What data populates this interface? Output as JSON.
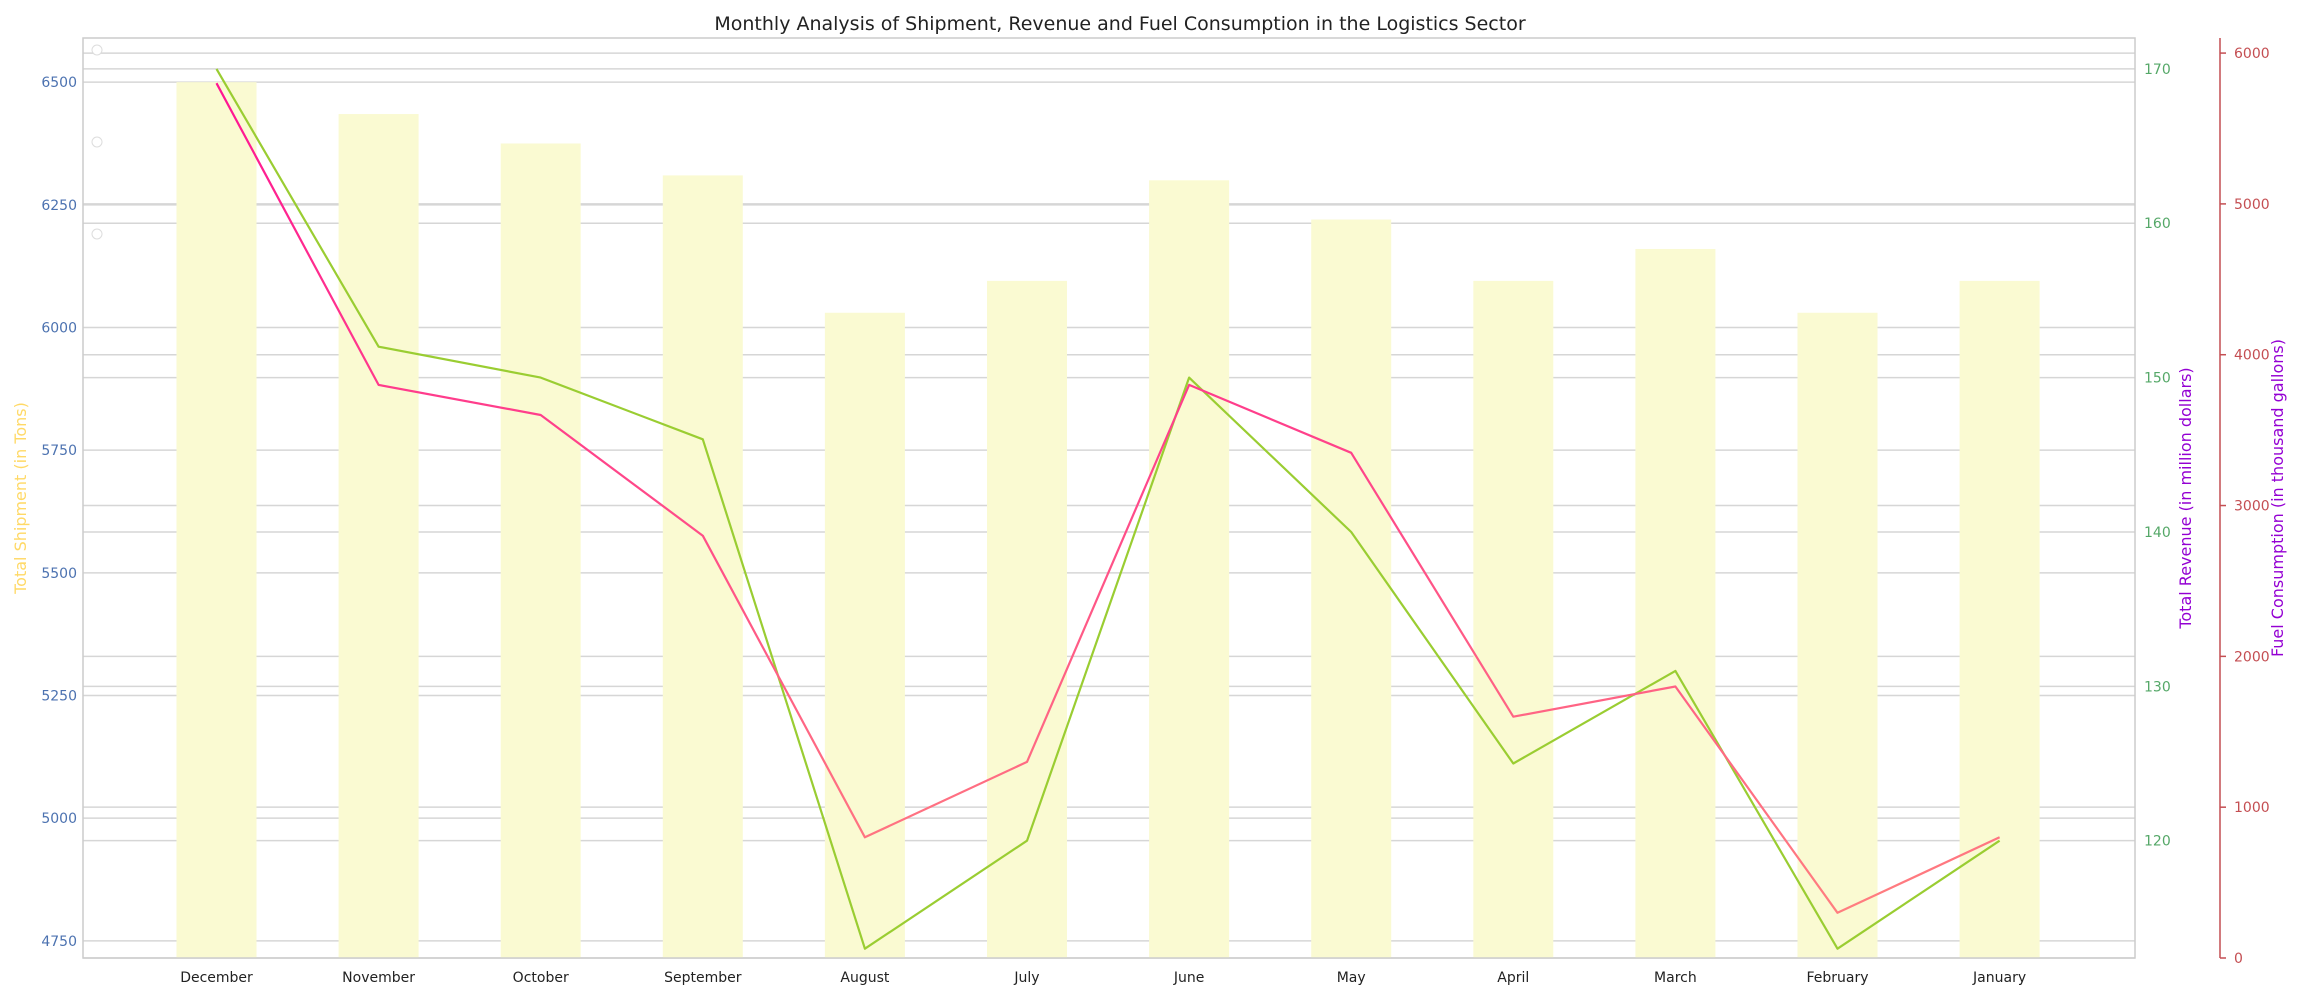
{
  "chart_data": {
    "type": "bar",
    "title": "Monthly Analysis of Shipment, Revenue and Fuel Consumption in the Logistics Sector",
    "categories": [
      "December",
      "November",
      "October",
      "September",
      "August",
      "July",
      "June",
      "May",
      "April",
      "March",
      "February",
      "January"
    ],
    "grid": true,
    "legend": "none",
    "series": [
      {
        "name": "Total Shipment (in Tons)",
        "type": "bar",
        "axis": "left",
        "color": "#fafad2",
        "values": [
          6500,
          6435,
          6375,
          6310,
          6030,
          6095,
          6300,
          6220,
          6095,
          6160,
          6030,
          6095
        ]
      },
      {
        "name": "Total Revenue (in million dollars)",
        "type": "line",
        "axis": "right1",
        "color": "#9acd32",
        "values": [
          170,
          152,
          150,
          146,
          113,
          120,
          150,
          140,
          125,
          131,
          113,
          120
        ]
      },
      {
        "name": "Fuel Consumption (in thousand gallons)",
        "type": "line",
        "axis": "right2",
        "gradient": [
          "#ff1493",
          "#ff7f7f"
        ],
        "values": [
          5800,
          3800,
          3600,
          2800,
          800,
          1300,
          3800,
          3350,
          1600,
          1800,
          300,
          800
        ]
      }
    ],
    "axes": {
      "left": {
        "label": "Total Shipment (in Tons)",
        "label_color": "#ffd966",
        "tick_color": "#4c72b0",
        "ylim": [
          4715,
          6590
        ],
        "ticks": [
          4750,
          5000,
          5250,
          5500,
          5750,
          6000,
          6250,
          6500
        ],
        "tick_labels": [
          "4750",
          "5000",
          "5250",
          "5500",
          "5750",
          "6000",
          "6250",
          "6500"
        ]
      },
      "right1": {
        "label": "Total Revenue (in million dollars)",
        "label_color": "#9400d3",
        "tick_color": "#55a868",
        "ylim": [
          112.4,
          172
        ],
        "ticks": [
          120,
          130,
          140,
          150,
          160,
          170
        ],
        "tick_labels": [
          "120",
          "130",
          "140",
          "150",
          "160",
          "170"
        ]
      },
      "right2": {
        "label": "Fuel Consumption (in thousand gallons)",
        "label_color": "#9400d3",
        "tick_color": "#c44e52",
        "ylim": [
          0,
          6100
        ],
        "ticks": [
          0,
          1000,
          2000,
          3000,
          4000,
          5000,
          6000
        ],
        "tick_labels": [
          "0",
          "1000",
          "2000",
          "3000",
          "4000",
          "5000",
          "6000"
        ]
      }
    }
  }
}
